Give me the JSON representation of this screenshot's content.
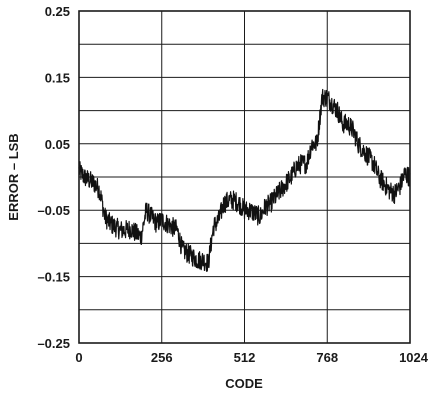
{
  "chart_data": {
    "type": "line",
    "xlabel": "CODE",
    "ylabel": "ERROR – LSB",
    "xlim": [
      0,
      1024
    ],
    "ylim": [
      -0.25,
      0.25
    ],
    "x_ticks": [
      0,
      256,
      512,
      768,
      1024
    ],
    "x_tick_labels": [
      "0",
      "256",
      "512",
      "768",
      "1024"
    ],
    "y_ticks": [
      0.25,
      0.15,
      0.05,
      -0.05,
      -0.15,
      -0.25
    ],
    "y_tick_labels": [
      "0.25",
      "0.15",
      "0.05",
      "–0.05",
      "–0.15",
      "–0.25"
    ],
    "grid": true,
    "series": [
      {
        "color": "#111111",
        "x": [
          0,
          16,
          32,
          48,
          64,
          80,
          96,
          112,
          128,
          144,
          160,
          176,
          192,
          208,
          224,
          240,
          256,
          272,
          288,
          304,
          320,
          336,
          352,
          368,
          384,
          400,
          416,
          432,
          448,
          464,
          480,
          496,
          512,
          528,
          544,
          560,
          576,
          592,
          608,
          624,
          640,
          656,
          672,
          688,
          704,
          720,
          736,
          752,
          768,
          784,
          800,
          816,
          832,
          848,
          864,
          880,
          896,
          912,
          928,
          944,
          960,
          976,
          992,
          1008,
          1024
        ],
        "y": [
          0.01,
          0.0,
          -0.005,
          -0.01,
          -0.02,
          -0.06,
          -0.07,
          -0.075,
          -0.08,
          -0.08,
          -0.078,
          -0.085,
          -0.09,
          -0.05,
          -0.06,
          -0.07,
          -0.065,
          -0.07,
          -0.075,
          -0.08,
          -0.11,
          -0.115,
          -0.12,
          -0.125,
          -0.125,
          -0.13,
          -0.075,
          -0.065,
          -0.04,
          -0.035,
          -0.035,
          -0.04,
          -0.05,
          -0.05,
          -0.055,
          -0.06,
          -0.045,
          -0.04,
          -0.03,
          -0.02,
          -0.01,
          0.0,
          0.015,
          0.02,
          0.02,
          0.05,
          0.05,
          0.12,
          0.12,
          0.11,
          0.1,
          0.08,
          0.08,
          0.07,
          0.05,
          0.04,
          0.03,
          0.02,
          0.0,
          -0.01,
          -0.02,
          -0.025,
          -0.015,
          0.005,
          0.0
        ]
      }
    ]
  }
}
